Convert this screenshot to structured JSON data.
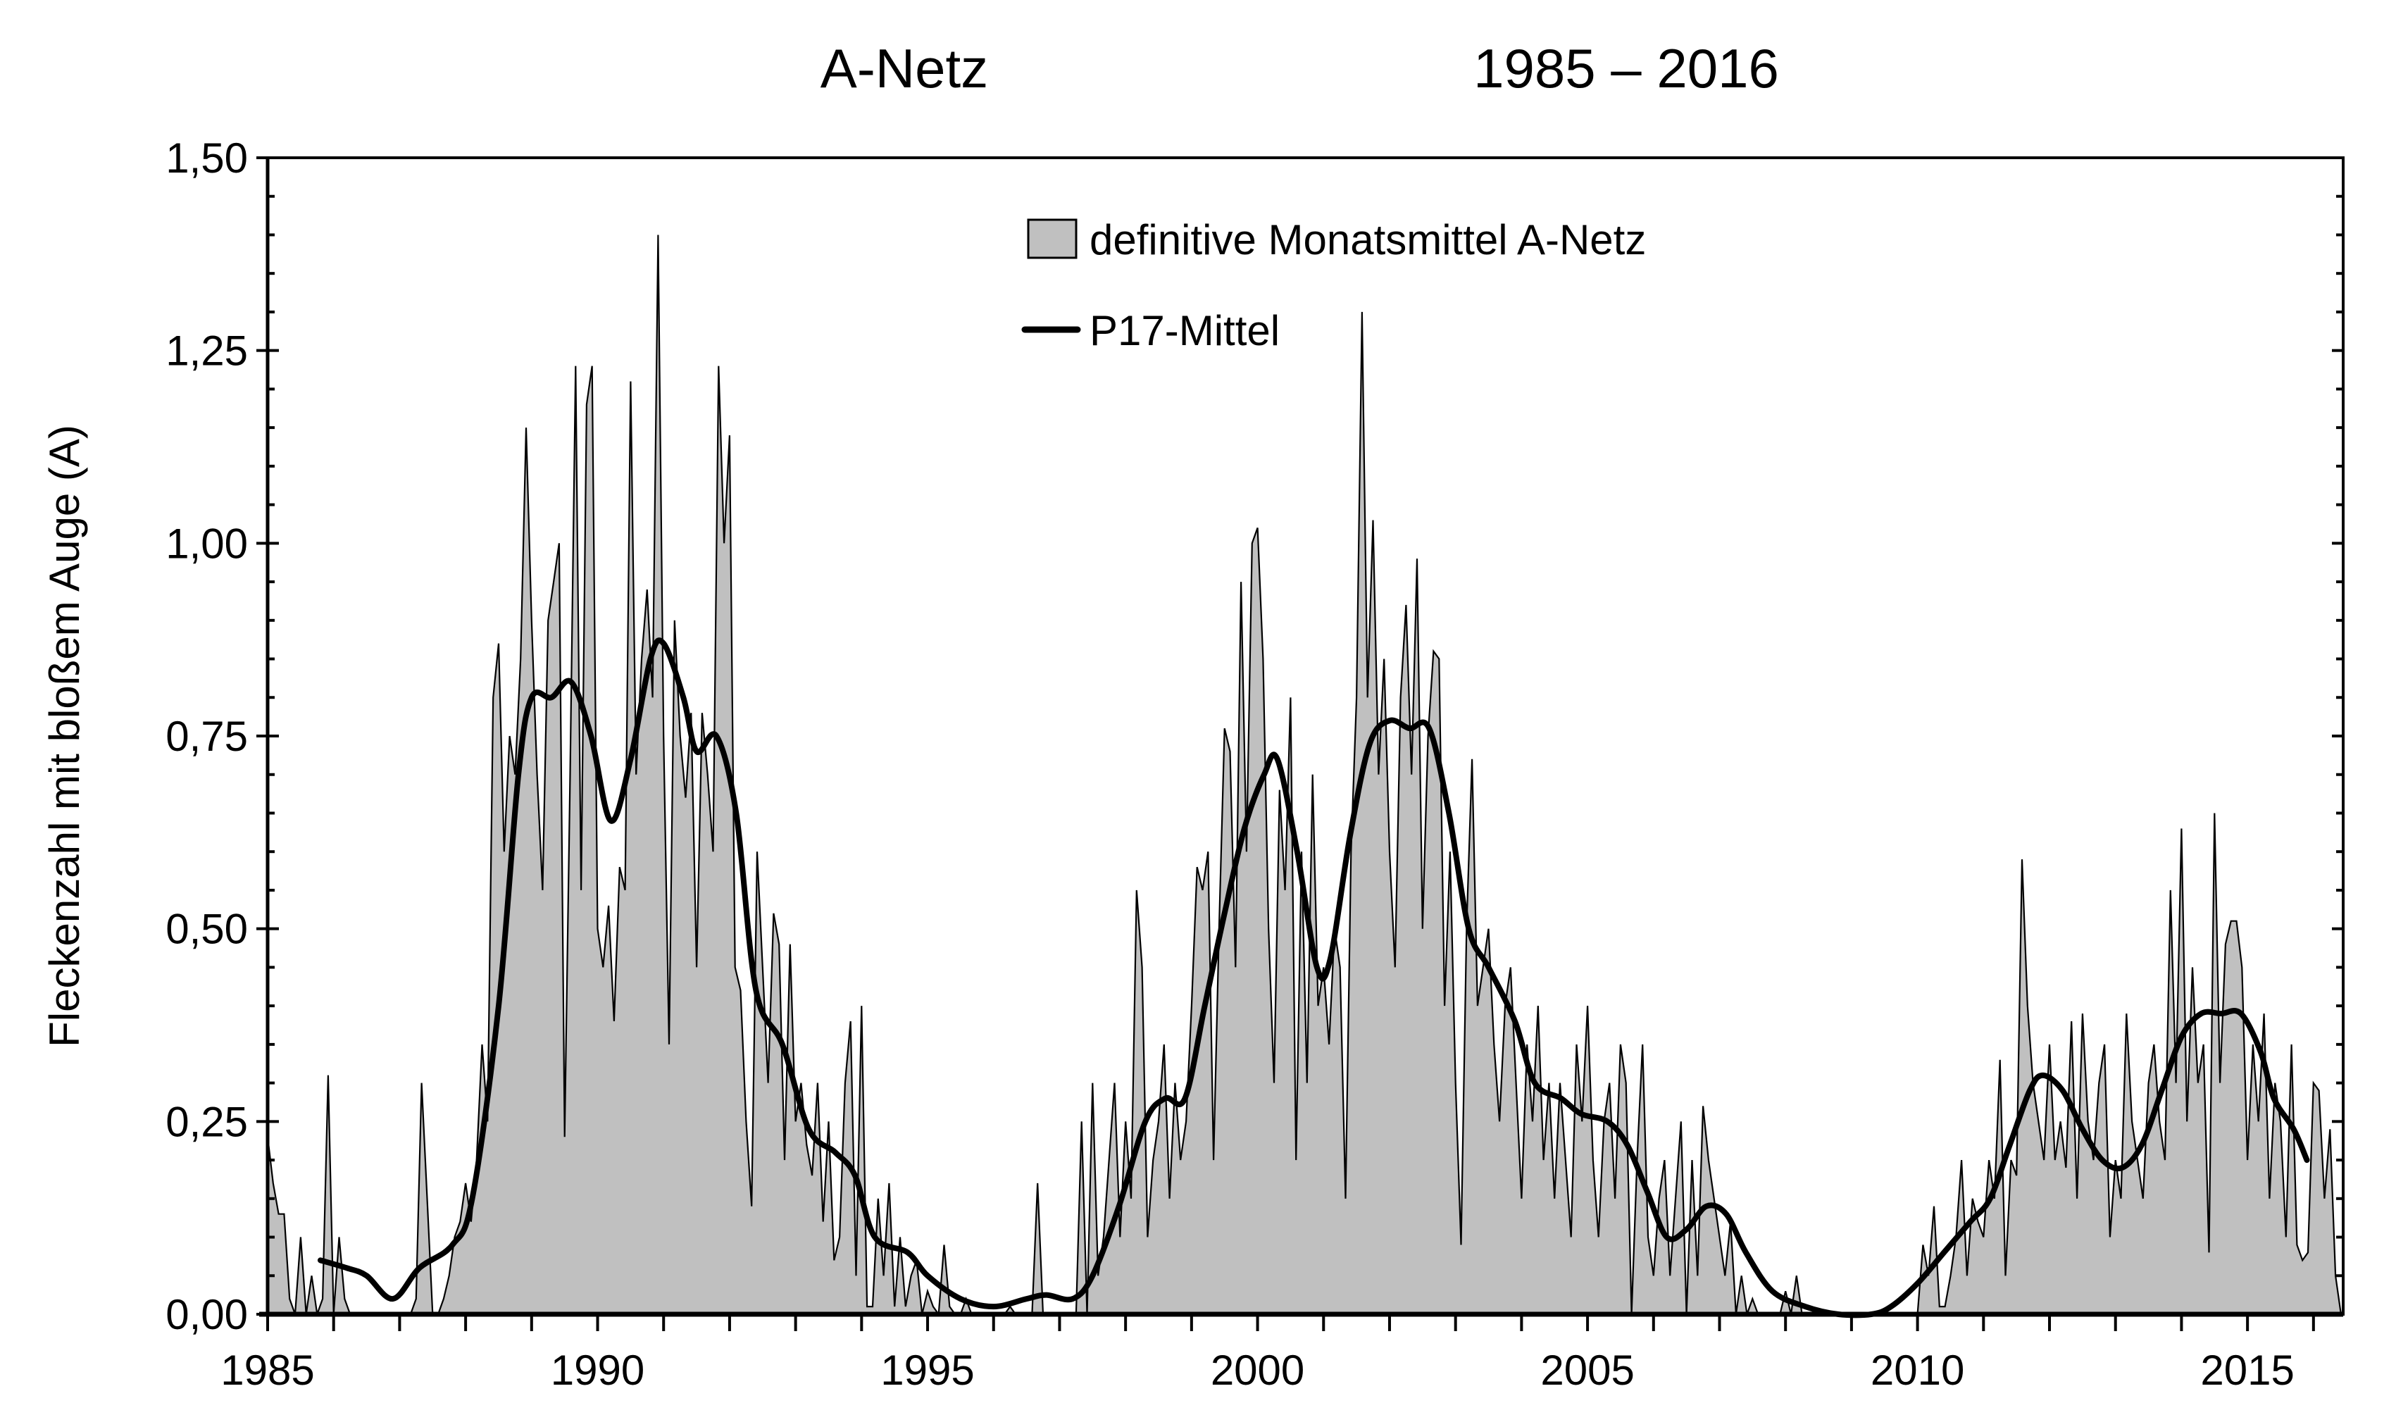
{
  "chart_data": {
    "type": "area",
    "title_left": "A-Netz",
    "title_right": "1985 – 2016",
    "xlabel": "",
    "ylabel": "Fleckenzahl mit bloßem Auge (A)",
    "xlim": [
      1985,
      2016.45
    ],
    "ylim": [
      0,
      1.5
    ],
    "xticks": [
      1985,
      1990,
      1995,
      2000,
      2005,
      2010,
      2015
    ],
    "xtick_labels": [
      "1985",
      "1990",
      "1995",
      "2000",
      "2005",
      "2010",
      "2015"
    ],
    "yticks": [
      0,
      0.25,
      0.5,
      0.75,
      1.0,
      1.25,
      1.5
    ],
    "ytick_labels": [
      "0,00",
      "0,25",
      "0,50",
      "0,75",
      "1,00",
      "1,25",
      "1,50"
    ],
    "legend_position": "top-center",
    "grid": false,
    "series": [
      {
        "name": "definitive Monatsmittel A-Netz",
        "kind": "area",
        "color": "#c0c0c0",
        "start": 1985.0,
        "step": 0.0833333,
        "values": [
          0.23,
          0.17,
          0.13,
          0.13,
          0.02,
          0,
          0.1,
          0,
          0.05,
          0,
          0.02,
          0.31,
          0.0,
          0.1,
          0.02,
          0,
          0,
          0,
          0,
          0,
          0,
          0,
          0,
          0,
          0,
          0,
          0,
          0.02,
          0.3,
          0.15,
          0,
          0,
          0.02,
          0.05,
          0.1,
          0.12,
          0.17,
          0.12,
          0.2,
          0.35,
          0.25,
          0.8,
          0.87,
          0.6,
          0.75,
          0.7,
          0.85,
          1.15,
          0.9,
          0.7,
          0.55,
          0.9,
          0.95,
          1.0,
          0.23,
          0.7,
          1.23,
          0.55,
          1.18,
          1.23,
          0.5,
          0.45,
          0.53,
          0.38,
          0.58,
          0.55,
          1.21,
          0.7,
          0.85,
          0.94,
          0.8,
          1.4,
          0.75,
          0.35,
          0.9,
          0.75,
          0.67,
          0.78,
          0.45,
          0.78,
          0.7,
          0.6,
          1.23,
          1.0,
          1.14,
          0.45,
          0.42,
          0.25,
          0.14,
          0.6,
          0.45,
          0.3,
          0.52,
          0.48,
          0.2,
          0.48,
          0.25,
          0.3,
          0.22,
          0.18,
          0.3,
          0.12,
          0.25,
          0.07,
          0.1,
          0.3,
          0.38,
          0.05,
          0.4,
          0.01,
          0.01,
          0.15,
          0.05,
          0.17,
          0.01,
          0.1,
          0.01,
          0.05,
          0.07,
          0.0,
          0.03,
          0.01,
          0.0,
          0.09,
          0.01,
          0.0,
          0.0,
          0.02,
          0.0,
          0.0,
          0.0,
          0.0,
          0.0,
          0.0,
          0.0,
          0.01,
          0.0,
          0.0,
          0.0,
          0.0,
          0.17,
          0.0,
          0.0,
          0.0,
          0.0,
          0.0,
          0.0,
          0.0,
          0.25,
          0.0,
          0.3,
          0.05,
          0.1,
          0.2,
          0.3,
          0.1,
          0.25,
          0.15,
          0.55,
          0.45,
          0.1,
          0.2,
          0.25,
          0.35,
          0.15,
          0.3,
          0.2,
          0.25,
          0.4,
          0.58,
          0.55,
          0.6,
          0.2,
          0.5,
          0.76,
          0.73,
          0.45,
          0.95,
          0.6,
          1.0,
          1.02,
          0.85,
          0.5,
          0.3,
          0.68,
          0.55,
          0.8,
          0.2,
          0.6,
          0.3,
          0.7,
          0.4,
          0.45,
          0.35,
          0.5,
          0.45,
          0.15,
          0.6,
          0.8,
          1.3,
          0.8,
          1.03,
          0.7,
          0.85,
          0.6,
          0.45,
          0.8,
          0.92,
          0.7,
          0.98,
          0.5,
          0.75,
          0.86,
          0.85,
          0.4,
          0.6,
          0.3,
          0.09,
          0.5,
          0.72,
          0.4,
          0.45,
          0.5,
          0.35,
          0.25,
          0.4,
          0.45,
          0.3,
          0.15,
          0.35,
          0.25,
          0.4,
          0.2,
          0.3,
          0.15,
          0.3,
          0.2,
          0.1,
          0.35,
          0.25,
          0.4,
          0.2,
          0.1,
          0.25,
          0.3,
          0.15,
          0.35,
          0.3,
          0.0,
          0.2,
          0.35,
          0.1,
          0.05,
          0.15,
          0.2,
          0.05,
          0.15,
          0.25,
          0.0,
          0.2,
          0.05,
          0.27,
          0.2,
          0.15,
          0.1,
          0.05,
          0.12,
          0.0,
          0.05,
          0.0,
          0.02,
          0.0,
          0.0,
          0.0,
          0.0,
          0.0,
          0.03,
          0.0,
          0.05,
          0.0,
          0.0,
          0.0,
          0.0,
          0.0,
          0.0,
          0.0,
          0.0,
          0.0,
          0.0,
          0.0,
          0.0,
          0.0,
          0.0,
          0.0,
          0.0,
          0.0,
          0.0,
          0.0,
          0.0,
          0.0,
          0.0,
          0.09,
          0.05,
          0.14,
          0.01,
          0.01,
          0.05,
          0.1,
          0.2,
          0.05,
          0.15,
          0.12,
          0.1,
          0.2,
          0.15,
          0.33,
          0.05,
          0.2,
          0.18,
          0.59,
          0.4,
          0.3,
          0.25,
          0.2,
          0.35,
          0.2,
          0.25,
          0.19,
          0.38,
          0.15,
          0.39,
          0.25,
          0.2,
          0.3,
          0.35,
          0.1,
          0.2,
          0.15,
          0.39,
          0.25,
          0.2,
          0.15,
          0.3,
          0.35,
          0.25,
          0.2,
          0.55,
          0.3,
          0.63,
          0.25,
          0.45,
          0.3,
          0.35,
          0.08,
          0.65,
          0.3,
          0.48,
          0.51,
          0.51,
          0.45,
          0.2,
          0.35,
          0.25,
          0.39,
          0.15,
          0.3,
          0.25,
          0.1,
          0.35,
          0.09,
          0.07,
          0.08,
          0.3,
          0.29,
          0.15,
          0.24,
          0.05,
          0.0
        ]
      },
      {
        "name": "P17-Mittel",
        "kind": "line",
        "color": "#000000",
        "points": [
          [
            1985.8,
            0.07
          ],
          [
            1986.2,
            0.06
          ],
          [
            1986.5,
            0.05
          ],
          [
            1986.9,
            0.02
          ],
          [
            1987.3,
            0.06
          ],
          [
            1987.8,
            0.09
          ],
          [
            1988.1,
            0.15
          ],
          [
            1988.5,
            0.4
          ],
          [
            1988.8,
            0.7
          ],
          [
            1989.0,
            0.8
          ],
          [
            1989.3,
            0.8
          ],
          [
            1989.6,
            0.82
          ],
          [
            1989.9,
            0.75
          ],
          [
            1990.2,
            0.64
          ],
          [
            1990.5,
            0.72
          ],
          [
            1990.8,
            0.85
          ],
          [
            1991.0,
            0.87
          ],
          [
            1991.3,
            0.8
          ],
          [
            1991.5,
            0.73
          ],
          [
            1991.8,
            0.75
          ],
          [
            1992.1,
            0.65
          ],
          [
            1992.4,
            0.42
          ],
          [
            1992.8,
            0.35
          ],
          [
            1993.2,
            0.24
          ],
          [
            1993.6,
            0.21
          ],
          [
            1993.9,
            0.18
          ],
          [
            1994.2,
            0.1
          ],
          [
            1994.7,
            0.08
          ],
          [
            1995.0,
            0.05
          ],
          [
            1995.5,
            0.02
          ],
          [
            1996.0,
            0.01
          ],
          [
            1996.5,
            0.02
          ],
          [
            1996.8,
            0.025
          ],
          [
            1997.2,
            0.02
          ],
          [
            1997.5,
            0.05
          ],
          [
            1997.9,
            0.14
          ],
          [
            1998.3,
            0.25
          ],
          [
            1998.6,
            0.28
          ],
          [
            1998.9,
            0.28
          ],
          [
            1999.2,
            0.4
          ],
          [
            1999.5,
            0.52
          ],
          [
            1999.8,
            0.63
          ],
          [
            2000.1,
            0.7
          ],
          [
            2000.3,
            0.72
          ],
          [
            2000.6,
            0.6
          ],
          [
            2000.9,
            0.45
          ],
          [
            2001.1,
            0.46
          ],
          [
            2001.4,
            0.62
          ],
          [
            2001.7,
            0.74
          ],
          [
            2002.0,
            0.77
          ],
          [
            2002.3,
            0.76
          ],
          [
            2002.6,
            0.76
          ],
          [
            2002.9,
            0.65
          ],
          [
            2003.2,
            0.5
          ],
          [
            2003.5,
            0.45
          ],
          [
            2003.9,
            0.38
          ],
          [
            2004.2,
            0.3
          ],
          [
            2004.6,
            0.28
          ],
          [
            2004.9,
            0.26
          ],
          [
            2005.3,
            0.25
          ],
          [
            2005.6,
            0.22
          ],
          [
            2005.9,
            0.16
          ],
          [
            2006.2,
            0.1
          ],
          [
            2006.5,
            0.11
          ],
          [
            2006.8,
            0.14
          ],
          [
            2007.1,
            0.13
          ],
          [
            2007.4,
            0.08
          ],
          [
            2007.8,
            0.03
          ],
          [
            2008.3,
            0.01
          ],
          [
            2008.8,
            0.0
          ],
          [
            2009.3,
            0.0
          ],
          [
            2009.6,
            0.01
          ],
          [
            2010.0,
            0.04
          ],
          [
            2010.4,
            0.08
          ],
          [
            2010.8,
            0.12
          ],
          [
            2011.1,
            0.15
          ],
          [
            2011.4,
            0.22
          ],
          [
            2011.7,
            0.29
          ],
          [
            2011.9,
            0.31
          ],
          [
            2012.2,
            0.29
          ],
          [
            2012.5,
            0.24
          ],
          [
            2012.8,
            0.2
          ],
          [
            2013.1,
            0.19
          ],
          [
            2013.4,
            0.22
          ],
          [
            2013.7,
            0.29
          ],
          [
            2014.0,
            0.36
          ],
          [
            2014.3,
            0.39
          ],
          [
            2014.6,
            0.39
          ],
          [
            2014.9,
            0.39
          ],
          [
            2015.2,
            0.34
          ],
          [
            2015.4,
            0.28
          ],
          [
            2015.7,
            0.24
          ],
          [
            2015.9,
            0.2
          ]
        ]
      }
    ]
  }
}
